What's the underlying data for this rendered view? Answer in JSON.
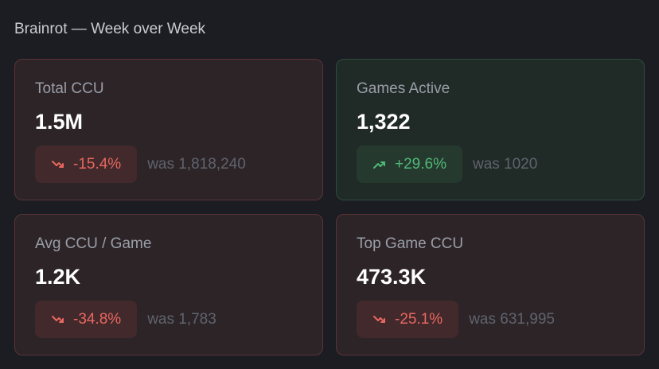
{
  "header": {
    "title": "Brainrot — Week over Week"
  },
  "cards": [
    {
      "label": "Total CCU",
      "value": "1.5M",
      "change": "-15.4%",
      "previous": "was 1,818,240"
    },
    {
      "label": "Games Active",
      "value": "1,322",
      "change": "+29.6%",
      "previous": "was 1020"
    },
    {
      "label": "Avg CCU / Game",
      "value": "1.2K",
      "change": "-34.8%",
      "previous": "was 1,783"
    },
    {
      "label": "Top Game CCU",
      "value": "473.3K",
      "change": "-25.1%",
      "previous": "was 631,995"
    }
  ]
}
